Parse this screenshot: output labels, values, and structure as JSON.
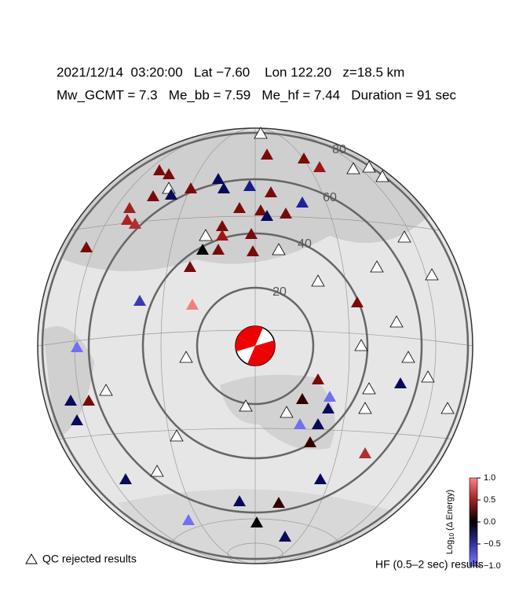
{
  "header": {
    "line1": "2021/12/14  03:20:00   Lat −7.60    Lon 122.20   z=18.5 km",
    "line2": "Mw_GCMT = 7.3   Me_bb = 7.59   Me_hf = 7.44   Duration = 91 sec"
  },
  "rings": {
    "labels": [
      "20",
      "40",
      "60",
      "80"
    ]
  },
  "colorbar": {
    "label": {
      "main": "Log",
      "sub": "10",
      "rest": " (Δ Energy)"
    },
    "ticks": [
      {
        "value": 1,
        "label": "1.0"
      },
      {
        "value": 0.5,
        "label": "0.5"
      },
      {
        "value": 0,
        "label": "0.0"
      },
      {
        "value": -0.5,
        "label": "−0.5"
      },
      {
        "value": -1,
        "label": "−1.0"
      }
    ],
    "range": [
      -1,
      1
    ]
  },
  "legend": {
    "rejected": "QC rejected results",
    "results": "HF (0.5–2 sec) results"
  }
}
